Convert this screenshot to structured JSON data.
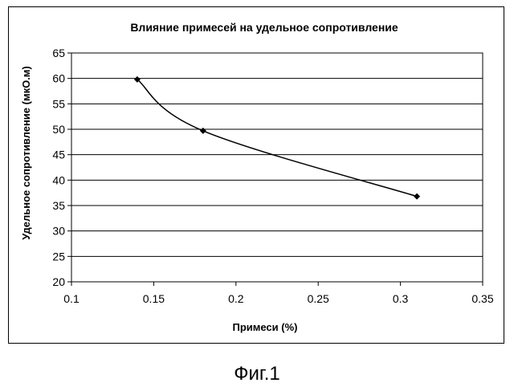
{
  "chart_data": {
    "type": "line",
    "title": "Влияние примесей на удельное сопротивление",
    "xlabel": "Примеси (%)",
    "ylabel": "Удельное сопротивление (мкО.м)",
    "xlim": [
      0.1,
      0.35
    ],
    "ylim": [
      20,
      65
    ],
    "x_ticks": [
      "0.1",
      "0.15",
      "0.2",
      "0.25",
      "0.3",
      "0.35"
    ],
    "y_ticks": [
      "20",
      "25",
      "30",
      "35",
      "40",
      "45",
      "50",
      "55",
      "60",
      "65"
    ],
    "grid": true,
    "smooth": true,
    "marker": "diamond",
    "series": [
      {
        "x": [
          0.14,
          0.18,
          0.31
        ],
        "y": [
          59.8,
          49.7,
          36.8
        ]
      }
    ]
  },
  "figure_caption": "Фиг.1",
  "colors": {
    "line": "#000000",
    "grid": "#000000",
    "background": "#ffffff"
  }
}
